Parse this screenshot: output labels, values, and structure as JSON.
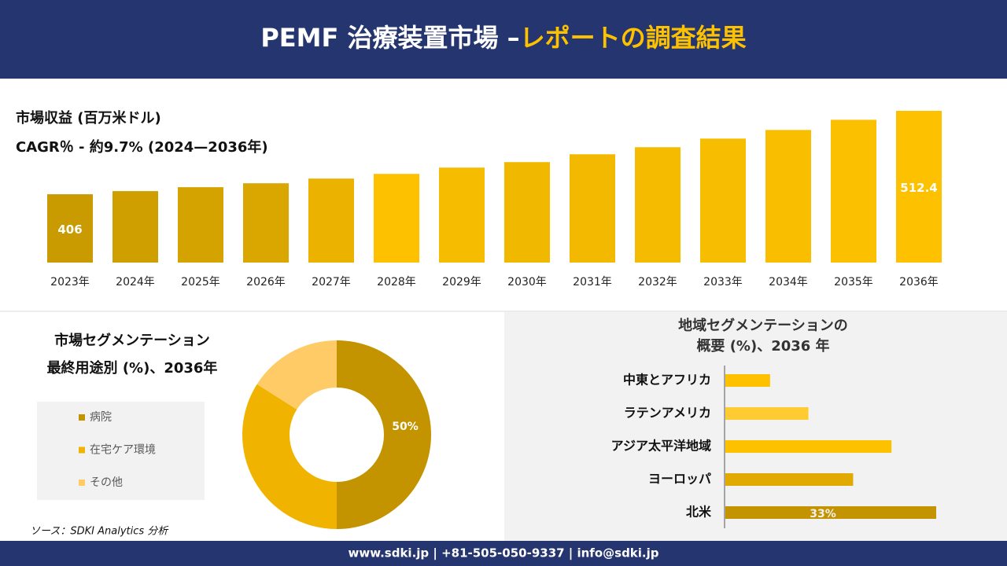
{
  "header": {
    "title_main": "PEMF 治療装置市場 –",
    "title_highlight": "レポートの調査結果"
  },
  "chart_data": [
    {
      "type": "bar",
      "title": "市場収益 (百万米ドル)",
      "subtitle": "CAGR％ - 約9.7% (2024—2036年)",
      "categories": [
        "2023年",
        "2024年",
        "2025年",
        "2026年",
        "2027年",
        "2028年",
        "2029年",
        "2030年",
        "2031年",
        "2032年",
        "2033年",
        "2034年",
        "2035年",
        "2036年"
      ],
      "values": [
        406,
        410,
        415,
        420,
        426,
        432,
        440,
        447,
        457,
        466,
        477,
        488,
        501,
        512.4
      ],
      "value_labels": [
        "406",
        null,
        null,
        null,
        null,
        null,
        null,
        null,
        null,
        null,
        null,
        null,
        null,
        "512.4"
      ],
      "colors": [
        "#c99b00",
        "#cf9f00",
        "#d4a300",
        "#d9a700",
        "#ecb200",
        "#fdc100",
        "#f6bc00",
        "#f1b800",
        "#f3b900",
        "#f5bb00",
        "#f7bd00",
        "#f9be00",
        "#fbc000",
        "#fdc100"
      ],
      "ylim": [
        369,
        512.4
      ]
    },
    {
      "type": "donut",
      "title": "市場セグメンテーション",
      "subtitle": "最終用途別 (%)、2036年",
      "categories": [
        "病院",
        "在宅ケア環境",
        "その他"
      ],
      "values": [
        50,
        34,
        16
      ],
      "value_labels": [
        "50%",
        null,
        null
      ],
      "colors": [
        "#c39400",
        "#f0b400",
        "#ffcb66"
      ]
    },
    {
      "type": "barh",
      "title": "地域セグメンテーションの",
      "subtitle": "概要 (%)、2036 年",
      "categories": [
        "中東とアフリカ",
        "ラテンアメリカ",
        "アジア太平洋地域",
        "ヨーロッパ",
        "北米"
      ],
      "values": [
        7,
        13,
        26,
        20,
        33
      ],
      "value_labels": [
        null,
        null,
        null,
        null,
        "33%"
      ],
      "colors": [
        "#fdc100",
        "#ffcb33",
        "#fdc100",
        "#e0aa00",
        "#c39400"
      ],
      "xlim": [
        0,
        33
      ]
    }
  ],
  "source": "ソース：SDKI Analytics 分析",
  "footer": "www.sdki.jp | +81-505-050-9337 | info@sdki.jp"
}
